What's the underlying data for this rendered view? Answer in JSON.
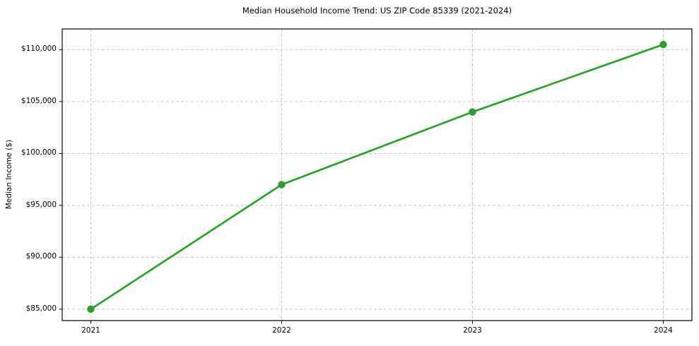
{
  "chart_data": {
    "type": "line",
    "title": "Median Household Income Trend: US ZIP Code 85339 (2021-2024)",
    "xlabel": "",
    "ylabel": "Median Income ($)",
    "x": [
      2021,
      2022,
      2023,
      2024
    ],
    "series": [
      {
        "name": "Median Household Income",
        "values": [
          85000,
          97000,
          104000,
          110500
        ]
      }
    ],
    "x_ticks": {
      "values": [
        2021,
        2022,
        2023,
        2024
      ],
      "labels": [
        "2021",
        "2022",
        "2023",
        "2024"
      ]
    },
    "y_ticks": {
      "values": [
        85000,
        90000,
        95000,
        100000,
        105000,
        110000
      ],
      "labels": [
        "$85,000",
        "$90,000",
        "$95,000",
        "$100,000",
        "$105,000",
        "$110,000"
      ]
    },
    "xlim": [
      2020.85,
      2024.15
    ],
    "ylim": [
      83900,
      112000
    ],
    "grid": true,
    "grid_style": "dashed",
    "legend": "none",
    "colors": {
      "line": "#2ca02c",
      "marker": "#2ca02c",
      "grid": "#c9c9c9",
      "axis": "#000000",
      "text": "#000000",
      "background": "#ffffff"
    }
  }
}
